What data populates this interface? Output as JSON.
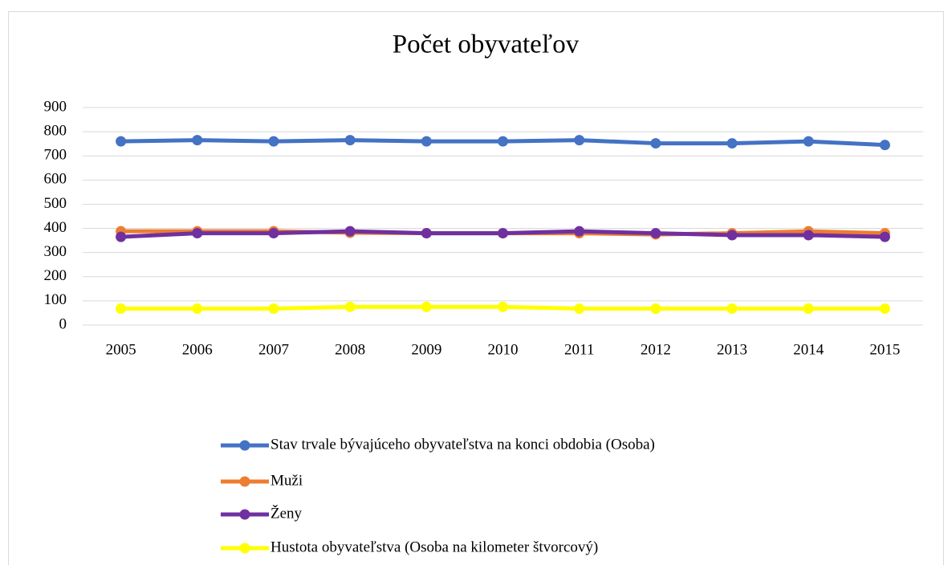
{
  "chart_data": {
    "type": "line",
    "title": "Počet obyvateľov",
    "categories": [
      "2005",
      "2006",
      "2007",
      "2008",
      "2009",
      "2010",
      "2011",
      "2012",
      "2013",
      "2014",
      "2015"
    ],
    "series": [
      {
        "name": "Stav trvale bývajúceho obyvateľstva na konci obdobia (Osoba)",
        "color": "#4472c4",
        "values": [
          760,
          765,
          760,
          765,
          760,
          760,
          765,
          752,
          752,
          760,
          745
        ]
      },
      {
        "name": "Muži",
        "color": "#ed7d31",
        "values": [
          388,
          388,
          388,
          382,
          380,
          380,
          380,
          375,
          380,
          388,
          380
        ]
      },
      {
        "name": "Ženy",
        "color": "#7030a0",
        "values": [
          365,
          380,
          380,
          388,
          380,
          380,
          388,
          380,
          372,
          372,
          365
        ]
      },
      {
        "name": "Hustota obyvateľstva (Osoba na kilometer štvorcový)",
        "color": "#ffff00",
        "values": [
          68,
          68,
          68,
          75,
          75,
          75,
          68,
          68,
          68,
          68,
          68
        ]
      }
    ],
    "ylim": [
      0,
      900
    ],
    "yticks": [
      0,
      100,
      200,
      300,
      400,
      500,
      600,
      700,
      800,
      900
    ],
    "grid": true,
    "legend": "bottom"
  }
}
